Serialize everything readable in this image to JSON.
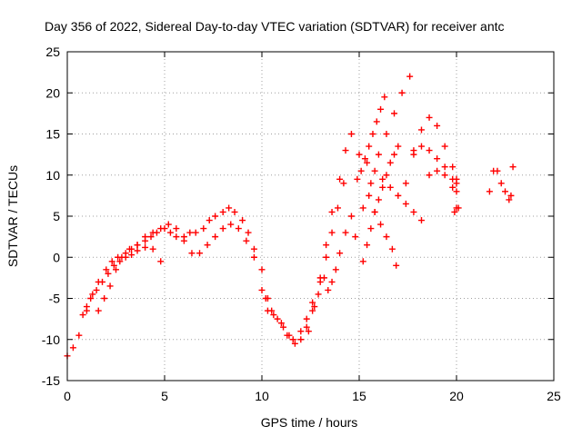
{
  "chart_data": {
    "type": "scatter",
    "title": "Day 356 of 2022, Sidereal Day-to-day VTEC variation (SDTVAR) for receiver antc",
    "xlabel": "GPS time / hours",
    "ylabel": "SDTVAR / TECUs",
    "xlim": [
      0,
      25
    ],
    "ylim": [
      -15,
      25
    ],
    "xticks": [
      0,
      5,
      10,
      15,
      20,
      25
    ],
    "yticks": [
      -15,
      -10,
      -5,
      0,
      5,
      10,
      15,
      20,
      25
    ],
    "xtick_labels": [
      "0",
      "5",
      "10",
      "15",
      "20",
      "25"
    ],
    "ytick_labels": [
      "-15",
      "-10",
      "-5",
      "0",
      "5",
      "10",
      "15",
      "20",
      "25"
    ],
    "grid": true,
    "marker": "plus",
    "color": "#ff0000",
    "series": [
      {
        "name": "main-trace",
        "x": [
          0.0,
          0.3,
          0.6,
          1.0,
          1.3,
          1.6,
          2.0,
          2.3,
          2.6,
          3.0,
          3.3,
          3.6,
          4.0,
          4.3,
          4.6,
          5.0,
          5.3,
          5.6,
          6.0,
          6.3,
          6.6,
          7.0,
          7.3,
          7.6,
          8.0,
          8.3,
          8.6,
          9.0,
          9.3,
          9.6,
          10.0,
          10.3,
          10.6,
          11.0,
          11.3,
          11.6,
          12.0,
          12.3,
          12.6,
          13.0,
          13.3,
          13.6,
          14.0,
          14.3,
          14.6
        ],
        "y": [
          -12.0,
          -11.0,
          -9.5,
          -6.5,
          -4.5,
          -3.0,
          -1.5,
          -0.5,
          0.0,
          0.5,
          1.0,
          1.5,
          2.0,
          2.5,
          3.0,
          3.5,
          3.0,
          2.5,
          2.5,
          3.0,
          3.0,
          3.5,
          4.5,
          5.0,
          5.5,
          6.0,
          5.5,
          4.5,
          3.0,
          1.0,
          -1.5,
          -5.0,
          -7.0,
          -8.0,
          -9.5,
          -10.0,
          -9.0,
          -7.5,
          -5.5,
          -2.5,
          1.5,
          5.5,
          9.5,
          13.0,
          15.0
        ]
      },
      {
        "name": "lower-branch",
        "x": [
          0.8,
          1.0,
          1.2,
          1.5,
          1.8,
          2.1,
          2.4,
          2.7,
          3.0,
          3.3,
          3.6,
          4.0,
          4.4,
          4.8
        ],
        "y": [
          -7.0,
          -6.0,
          -5.0,
          -4.0,
          -3.0,
          -2.0,
          -1.0,
          -0.5,
          0.0,
          0.3,
          0.8,
          1.2,
          1.0,
          -0.5
        ]
      },
      {
        "name": "hump-return",
        "x": [
          1.6,
          1.9,
          2.2,
          2.5,
          2.8,
          3.2,
          3.6,
          4.0,
          4.4,
          4.8,
          5.2,
          5.6,
          6.0,
          6.4,
          6.8,
          7.2,
          7.6,
          8.0,
          8.4,
          8.8,
          9.2,
          9.6,
          10.0,
          10.3
        ],
        "y": [
          -6.5,
          -5.0,
          -3.5,
          -1.5,
          0.0,
          1.0,
          1.5,
          2.5,
          3.0,
          3.5,
          4.0,
          3.5,
          2.0,
          0.5,
          0.5,
          1.5,
          2.5,
          3.5,
          4.0,
          3.5,
          2.0,
          0.0,
          -4.0,
          -6.5
        ]
      },
      {
        "name": "dip-lower",
        "x": [
          10.2,
          10.5,
          10.8,
          11.1,
          11.4,
          11.7,
          12.0,
          12.3,
          12.6,
          12.9,
          13.2
        ],
        "y": [
          -5.0,
          -6.5,
          -7.5,
          -8.5,
          -9.5,
          -10.5,
          -10.0,
          -8.5,
          -6.5,
          -4.5,
          -2.5
        ]
      },
      {
        "name": "pre-dawn-track",
        "x": [
          12.4,
          12.7,
          13.0,
          13.3,
          13.6,
          13.9,
          14.2
        ],
        "y": [
          -9.0,
          -6.0,
          -3.0,
          0.0,
          3.0,
          6.0,
          9.0
        ]
      },
      {
        "name": "isolated-low",
        "x": [
          13.4,
          13.6,
          13.8,
          14.0,
          14.3,
          14.6
        ],
        "y": [
          -4.0,
          -3.0,
          -1.5,
          0.5,
          3.0,
          5.0
        ]
      },
      {
        "name": "streak-a",
        "x": [
          14.8,
          15.2,
          15.6,
          16.0,
          16.4,
          16.8,
          17.2,
          17.6
        ],
        "y": [
          2.5,
          6.0,
          9.0,
          12.5,
          15.0,
          17.5,
          20.0,
          22.0
        ]
      },
      {
        "name": "streak-b",
        "x": [
          14.9,
          15.1,
          15.3,
          15.5,
          15.7,
          15.9,
          16.1,
          16.3
        ],
        "y": [
          9.5,
          10.5,
          12.0,
          13.5,
          15.0,
          16.5,
          18.0,
          19.5
        ]
      },
      {
        "name": "streak-c",
        "x": [
          15.2,
          15.4,
          15.6,
          15.8,
          16.0,
          16.2,
          16.4,
          16.6,
          16.8,
          17.0
        ],
        "y": [
          -0.5,
          1.5,
          3.5,
          5.5,
          7.0,
          8.5,
          10.0,
          11.5,
          12.5,
          13.5
        ]
      },
      {
        "name": "descending-band",
        "x": [
          15.0,
          15.4,
          15.8,
          16.2,
          16.6,
          17.0,
          17.4,
          17.8,
          18.2
        ],
        "y": [
          12.5,
          11.5,
          10.5,
          9.5,
          8.5,
          7.5,
          6.5,
          5.5,
          4.5
        ]
      },
      {
        "name": "descending-band-2",
        "x": [
          15.5,
          15.8,
          16.1,
          16.4,
          16.7,
          16.9
        ],
        "y": [
          7.5,
          5.5,
          4.0,
          2.5,
          1.0,
          -1.0
        ]
      },
      {
        "name": "late-arc",
        "x": [
          17.4,
          17.8,
          18.2,
          18.6,
          19.0,
          19.4,
          19.8,
          20.0
        ],
        "y": [
          9.0,
          13.0,
          15.5,
          17.0,
          16.0,
          13.5,
          11.0,
          9.5
        ]
      },
      {
        "name": "late-arc-2",
        "x": [
          17.8,
          18.2,
          18.6,
          19.0,
          19.4,
          19.8,
          20.0
        ],
        "y": [
          12.5,
          13.5,
          13.0,
          12.0,
          11.0,
          9.5,
          9.0
        ]
      },
      {
        "name": "late-arc-3",
        "x": [
          18.6,
          19.0,
          19.4,
          19.8,
          20.0
        ],
        "y": [
          10.0,
          10.5,
          10.0,
          8.5,
          8.0
        ]
      },
      {
        "name": "isolated-5",
        "x": [
          19.9,
          20.0,
          20.1
        ],
        "y": [
          5.5,
          6.0,
          6.0
        ]
      },
      {
        "name": "tail-cluster",
        "x": [
          21.7,
          21.9,
          22.1,
          22.3,
          22.5,
          22.7,
          22.8,
          22.9
        ],
        "y": [
          8.0,
          10.5,
          10.5,
          9.0,
          8.0,
          7.0,
          7.5,
          11.0
        ]
      }
    ]
  }
}
